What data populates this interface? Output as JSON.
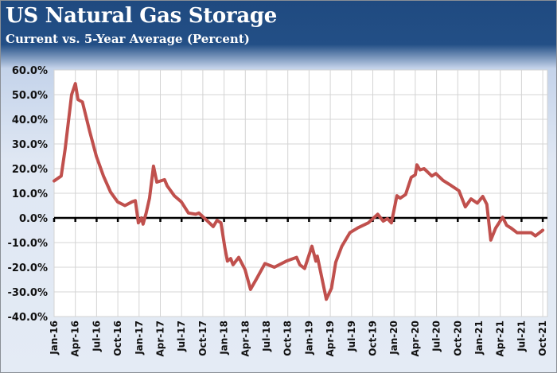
{
  "chart_data": {
    "type": "line",
    "title": "US Natural Gas Storage",
    "subtitle": "Current vs. 5-Year Average (Percent)",
    "xlabel": "",
    "ylabel": "",
    "ylim": [
      -40,
      60
    ],
    "y_ticks": [
      "60.0%",
      "50.0%",
      "40.0%",
      "30.0%",
      "20.0%",
      "10.0%",
      "0.0%",
      "-10.0%",
      "-20.0%",
      "-30.0%",
      "-40.0%"
    ],
    "y_tick_values": [
      60,
      50,
      40,
      30,
      20,
      10,
      0,
      -10,
      -20,
      -30,
      -40
    ],
    "x_ticks": [
      "Jan-16",
      "Apr-16",
      "Jul-16",
      "Oct-16",
      "Jan-17",
      "Apr-17",
      "Jul-17",
      "Oct-17",
      "Jan-18",
      "Apr-18",
      "Jul-18",
      "Oct-18",
      "Jan-19",
      "Apr-19",
      "Jul-19",
      "Oct-19",
      "Jan-20",
      "Apr-20",
      "Jul-20",
      "Oct-20",
      "Jan-21",
      "Apr-21",
      "Jul-21",
      "Oct-21"
    ],
    "grid": true,
    "legend": "none",
    "colors": {
      "line": "#c0504d",
      "zero_axis": "#000000",
      "title_bar": "#1f4a80"
    },
    "series": [
      {
        "x": [
          "2016-01-01",
          "2016-02-01",
          "2016-02-18",
          "2016-03-15",
          "2016-04-01",
          "2016-04-12",
          "2016-05-01",
          "2016-06-02",
          "2016-06-30",
          "2016-07-30",
          "2016-08-30",
          "2016-09-30",
          "2016-11-01",
          "2016-12-01",
          "2016-12-15",
          "2016-12-28",
          "2017-01-11",
          "2017-01-18",
          "2017-02-01",
          "2017-02-15",
          "2017-03-02",
          "2017-03-16",
          "2017-04-19",
          "2017-04-30",
          "2017-05-30",
          "2017-06-30",
          "2017-07-30",
          "2017-09-01",
          "2017-09-14",
          "2017-10-18",
          "2017-11-15",
          "2017-12-01",
          "2017-12-18",
          "2018-01-05",
          "2018-01-15",
          "2018-01-29",
          "2018-02-09",
          "2018-03-03",
          "2018-03-30",
          "2018-04-23",
          "2018-05-20",
          "2018-06-24",
          "2018-08-04",
          "2018-09-25",
          "2018-11-08",
          "2018-11-22",
          "2018-12-12",
          "2019-01-13",
          "2019-01-30",
          "2019-02-06",
          "2019-03-14",
          "2019-04-06",
          "2019-04-24",
          "2019-05-20",
          "2019-06-24",
          "2019-07-28",
          "2019-09-12",
          "2019-10-22",
          "2019-11-15",
          "2019-12-03",
          "2019-12-20",
          "2020-01-13",
          "2020-01-27",
          "2020-02-20",
          "2020-03-14",
          "2020-04-01",
          "2020-04-08",
          "2020-04-21",
          "2020-05-08",
          "2020-06-11",
          "2020-06-28",
          "2020-07-29",
          "2020-09-02",
          "2020-10-06",
          "2020-11-03",
          "2020-11-27",
          "2020-12-24",
          "2021-01-17",
          "2021-02-04",
          "2021-02-21",
          "2021-03-11",
          "2021-04-11",
          "2021-04-28",
          "2021-05-18",
          "2021-06-12",
          "2021-07-15",
          "2021-08-12",
          "2021-08-30",
          "2021-10-01"
        ],
        "y": [
          15,
          17,
          28,
          50,
          54.5,
          48,
          47,
          35,
          25,
          17,
          10.5,
          6.5,
          5,
          6.5,
          7,
          -2,
          0,
          -2.5,
          2,
          8,
          21,
          14.5,
          15.5,
          13,
          9,
          6.5,
          2,
          1.5,
          2,
          -1,
          -3.5,
          -1,
          -2,
          -12.5,
          -17.5,
          -16.5,
          -19,
          -16,
          -21,
          -29,
          -24.5,
          -18.5,
          -20,
          -17.5,
          -16,
          -19,
          -20.5,
          -11.5,
          -17.5,
          -15.5,
          -33,
          -28.5,
          -18,
          -11.5,
          -6,
          -4,
          -2,
          1.5,
          -1.3,
          -0.3,
          -2,
          9,
          8,
          9.5,
          16.5,
          17.5,
          21.5,
          19.5,
          20,
          17,
          18,
          15.2,
          13.2,
          11,
          4.5,
          7.7,
          6,
          8.7,
          5.5,
          -9,
          -4.2,
          0.3,
          -3,
          -4.2,
          -6,
          -6,
          -6,
          -7.3,
          -5
        ]
      }
    ]
  }
}
